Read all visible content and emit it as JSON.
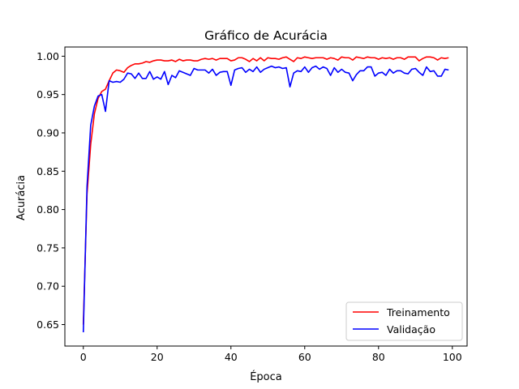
{
  "chart_data": {
    "type": "line",
    "title": "Gráfico de Acurácia",
    "xlabel": "Época",
    "ylabel": "Acurácia",
    "xlim": [
      -5,
      104
    ],
    "ylim": [
      0.622,
      1.012
    ],
    "xticks": [
      0,
      20,
      40,
      60,
      80,
      100
    ],
    "yticks": [
      0.65,
      0.7,
      0.75,
      0.8,
      0.85,
      0.9,
      0.95,
      1.0
    ],
    "ytick_labels": [
      "0.65",
      "0.70",
      "0.75",
      "0.80",
      "0.85",
      "0.90",
      "0.95",
      "1.00"
    ],
    "xtick_labels": [
      "0",
      "20",
      "40",
      "60",
      "80",
      "100"
    ],
    "grid": false,
    "legend": "lower-right",
    "series": [
      {
        "name": "Treinamento",
        "color": "#ff0000",
        "values": [
          0.65,
          0.82,
          0.885,
          0.925,
          0.945,
          0.954,
          0.957,
          0.968,
          0.978,
          0.982,
          0.981,
          0.979,
          0.985,
          0.988,
          0.99,
          0.99,
          0.991,
          0.993,
          0.992,
          0.994,
          0.995,
          0.995,
          0.994,
          0.994,
          0.995,
          0.993,
          0.996,
          0.994,
          0.995,
          0.995,
          0.994,
          0.994,
          0.996,
          0.997,
          0.996,
          0.997,
          0.995,
          0.997,
          0.997,
          0.997,
          0.994,
          0.995,
          0.998,
          0.998,
          0.996,
          0.993,
          0.997,
          0.994,
          0.998,
          0.994,
          0.998,
          0.997,
          0.997,
          0.996,
          0.998,
          0.999,
          0.996,
          0.993,
          0.998,
          0.997,
          0.999,
          0.998,
          0.997,
          0.998,
          0.998,
          0.998,
          0.996,
          0.998,
          0.997,
          0.995,
          0.999,
          0.998,
          0.998,
          0.995,
          0.999,
          0.998,
          0.997,
          0.999,
          0.998,
          0.998,
          0.996,
          0.998,
          0.997,
          0.998,
          0.996,
          0.998,
          0.998,
          0.996,
          0.999,
          0.999,
          0.999,
          0.994,
          0.997,
          0.999,
          0.999,
          0.998,
          0.995,
          0.998,
          0.997,
          0.998
        ]
      },
      {
        "name": "Validação",
        "color": "#0000ff",
        "values": [
          0.64,
          0.83,
          0.91,
          0.935,
          0.948,
          0.95,
          0.928,
          0.968,
          0.966,
          0.967,
          0.966,
          0.97,
          0.978,
          0.977,
          0.971,
          0.978,
          0.971,
          0.971,
          0.98,
          0.97,
          0.973,
          0.97,
          0.98,
          0.963,
          0.975,
          0.972,
          0.981,
          0.979,
          0.977,
          0.975,
          0.984,
          0.982,
          0.982,
          0.982,
          0.978,
          0.983,
          0.975,
          0.979,
          0.98,
          0.98,
          0.962,
          0.982,
          0.984,
          0.985,
          0.979,
          0.983,
          0.98,
          0.986,
          0.979,
          0.983,
          0.985,
          0.987,
          0.985,
          0.986,
          0.984,
          0.985,
          0.96,
          0.978,
          0.981,
          0.98,
          0.986,
          0.979,
          0.985,
          0.987,
          0.983,
          0.986,
          0.984,
          0.975,
          0.985,
          0.979,
          0.983,
          0.979,
          0.978,
          0.968,
          0.976,
          0.981,
          0.981,
          0.986,
          0.986,
          0.974,
          0.978,
          0.979,
          0.975,
          0.983,
          0.978,
          0.981,
          0.981,
          0.978,
          0.977,
          0.983,
          0.984,
          0.979,
          0.975,
          0.986,
          0.98,
          0.981,
          0.974,
          0.974,
          0.983,
          0.982
        ]
      }
    ]
  }
}
